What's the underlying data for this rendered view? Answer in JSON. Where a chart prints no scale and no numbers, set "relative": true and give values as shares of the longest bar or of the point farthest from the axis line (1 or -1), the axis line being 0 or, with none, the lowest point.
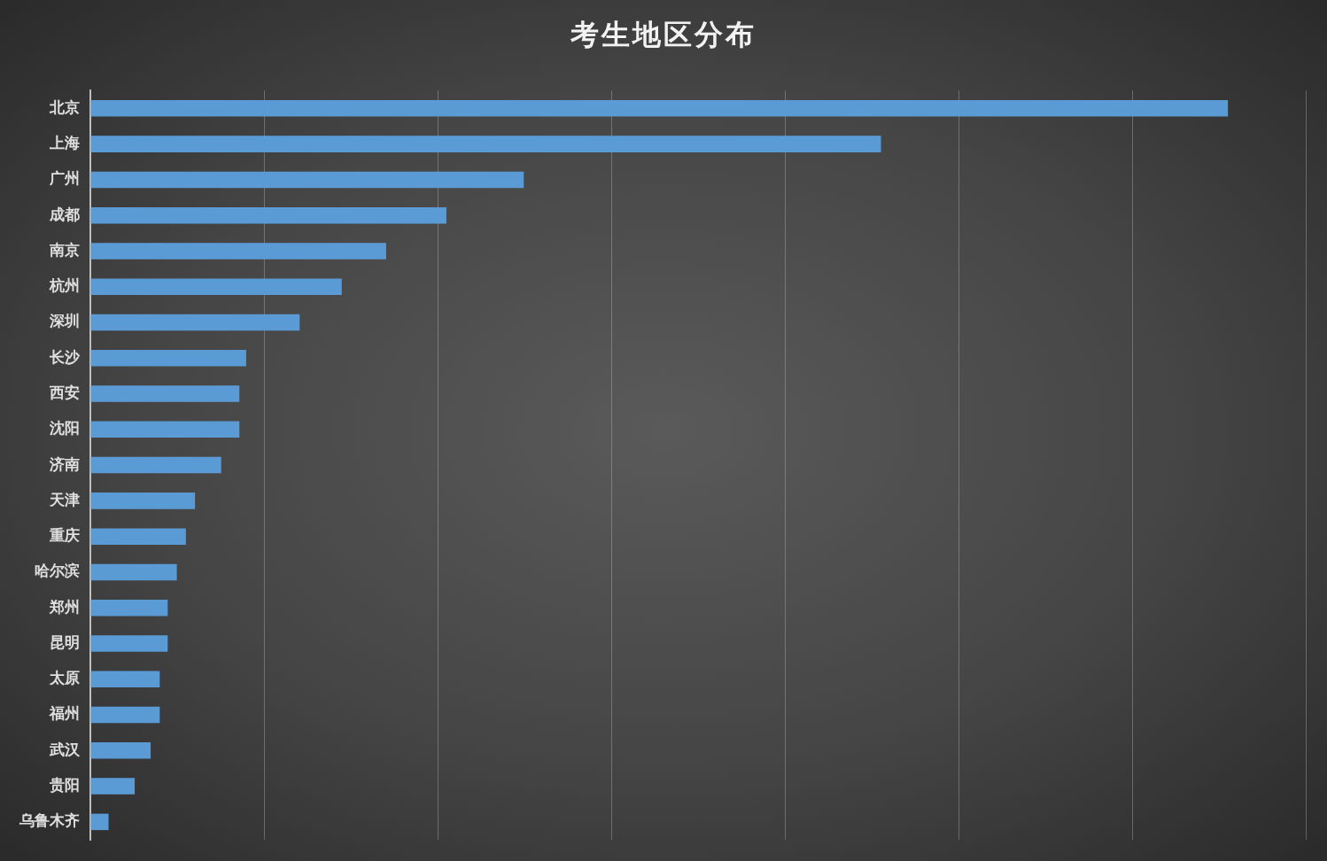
{
  "chart_data": {
    "type": "bar",
    "orientation": "horizontal",
    "relative": true,
    "title": "考生地区分布",
    "categories": [
      "北京",
      "上海",
      "广州",
      "成都",
      "南京",
      "杭州",
      "深圳",
      "长沙",
      "西安",
      "沈阳",
      "济南",
      "天津",
      "重庆",
      "哈尔滨",
      "郑州",
      "昆明",
      "太原",
      "福州",
      "武汉",
      "贵阳",
      "乌鲁木齐"
    ],
    "values": [
      1,
      0.695,
      0.381,
      0.313,
      0.26,
      0.221,
      0.184,
      0.137,
      0.131,
      0.131,
      0.115,
      0.092,
      0.084,
      0.076,
      0.068,
      0.068,
      0.061,
      0.061,
      0.053,
      0.039,
      0.016
    ],
    "color": "#5b9bd5",
    "grid": "x",
    "legend": false
  }
}
